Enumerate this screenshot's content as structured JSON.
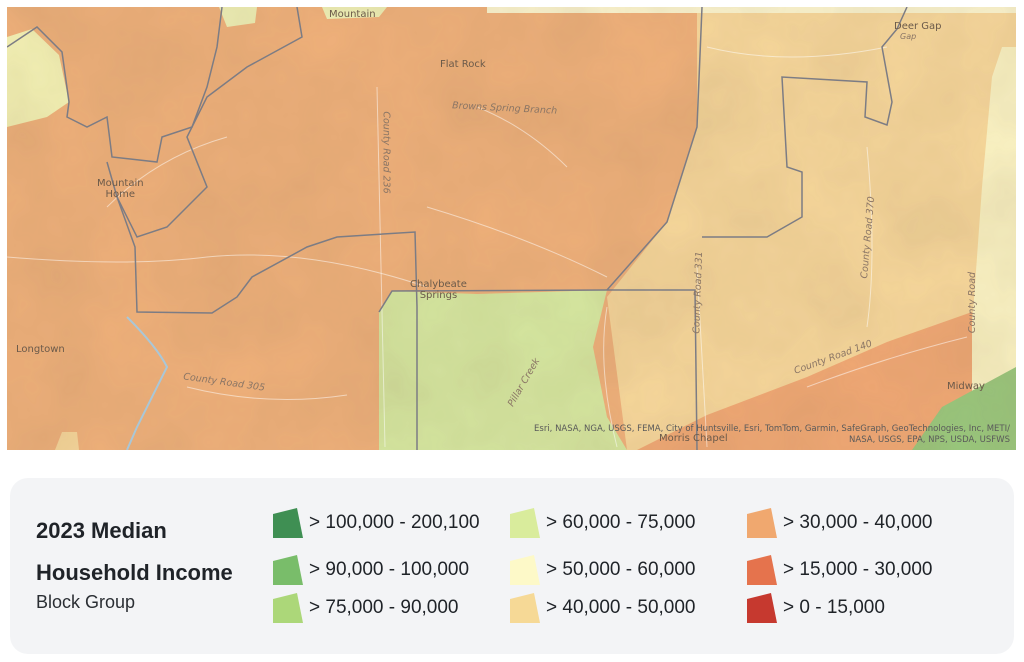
{
  "map": {
    "place_labels": [
      {
        "id": "mountain-top",
        "text": "Mountain"
      },
      {
        "id": "flat-rock",
        "text": "Flat Rock"
      },
      {
        "id": "deer-gap",
        "text": "Deer Gap"
      },
      {
        "id": "deer-gap-sub",
        "text": "Gap"
      },
      {
        "id": "mountain-home",
        "text": "Mountain\nHome"
      },
      {
        "id": "chalybeate-springs",
        "text": "Chalybeate\nSprings"
      },
      {
        "id": "longtown",
        "text": "Longtown"
      },
      {
        "id": "midway",
        "text": "Midway"
      },
      {
        "id": "morris-chapel",
        "text": "Morris Chapel"
      }
    ],
    "road_labels": [
      {
        "id": "brawns-spring-branch",
        "text": "Browns Spring Branch"
      },
      {
        "id": "county-road-236",
        "text": "County Road 236"
      },
      {
        "id": "county-road-305",
        "text": "County Road 305"
      },
      {
        "id": "county-road-370",
        "text": "County Road 370"
      },
      {
        "id": "county-road-331",
        "text": "County Road 331"
      },
      {
        "id": "county-road-140",
        "text": "County Road 140"
      },
      {
        "id": "county-road-right",
        "text": "County Road"
      },
      {
        "id": "pillar-creek",
        "text": "Pillar Creek"
      }
    ],
    "attribution": "Esri, NASA, NGA, USGS, FEMA, City of Huntsville, Esri, TomTom, Garmin, SafeGraph, GeoTechnologies, Inc, METI/ NASA, USGS, EPA, NPS, USDA, USFWS"
  },
  "legend": {
    "title_line1": "2023 Median",
    "title_line2": "Household Income",
    "subtitle": "Block Group",
    "items": [
      {
        "label": "> 100,000 - 200,100",
        "color": "#3f8f53"
      },
      {
        "label": "> 90,000 - 100,000",
        "color": "#79bd6a"
      },
      {
        "label": "> 75,000 - 90,000",
        "color": "#acd779"
      },
      {
        "label": "> 60,000 - 75,000",
        "color": "#d9ec9c"
      },
      {
        "label": "> 50,000 - 60,000",
        "color": "#fdf9c8"
      },
      {
        "label": "> 40,000 - 50,000",
        "color": "#f6d996"
      },
      {
        "label": "> 30,000 - 40,000",
        "color": "#f0a86f"
      },
      {
        "label": "> 15,000 - 30,000",
        "color": "#e5734d"
      },
      {
        "label": "> 0 - 15,000",
        "color": "#c6392f"
      }
    ]
  }
}
